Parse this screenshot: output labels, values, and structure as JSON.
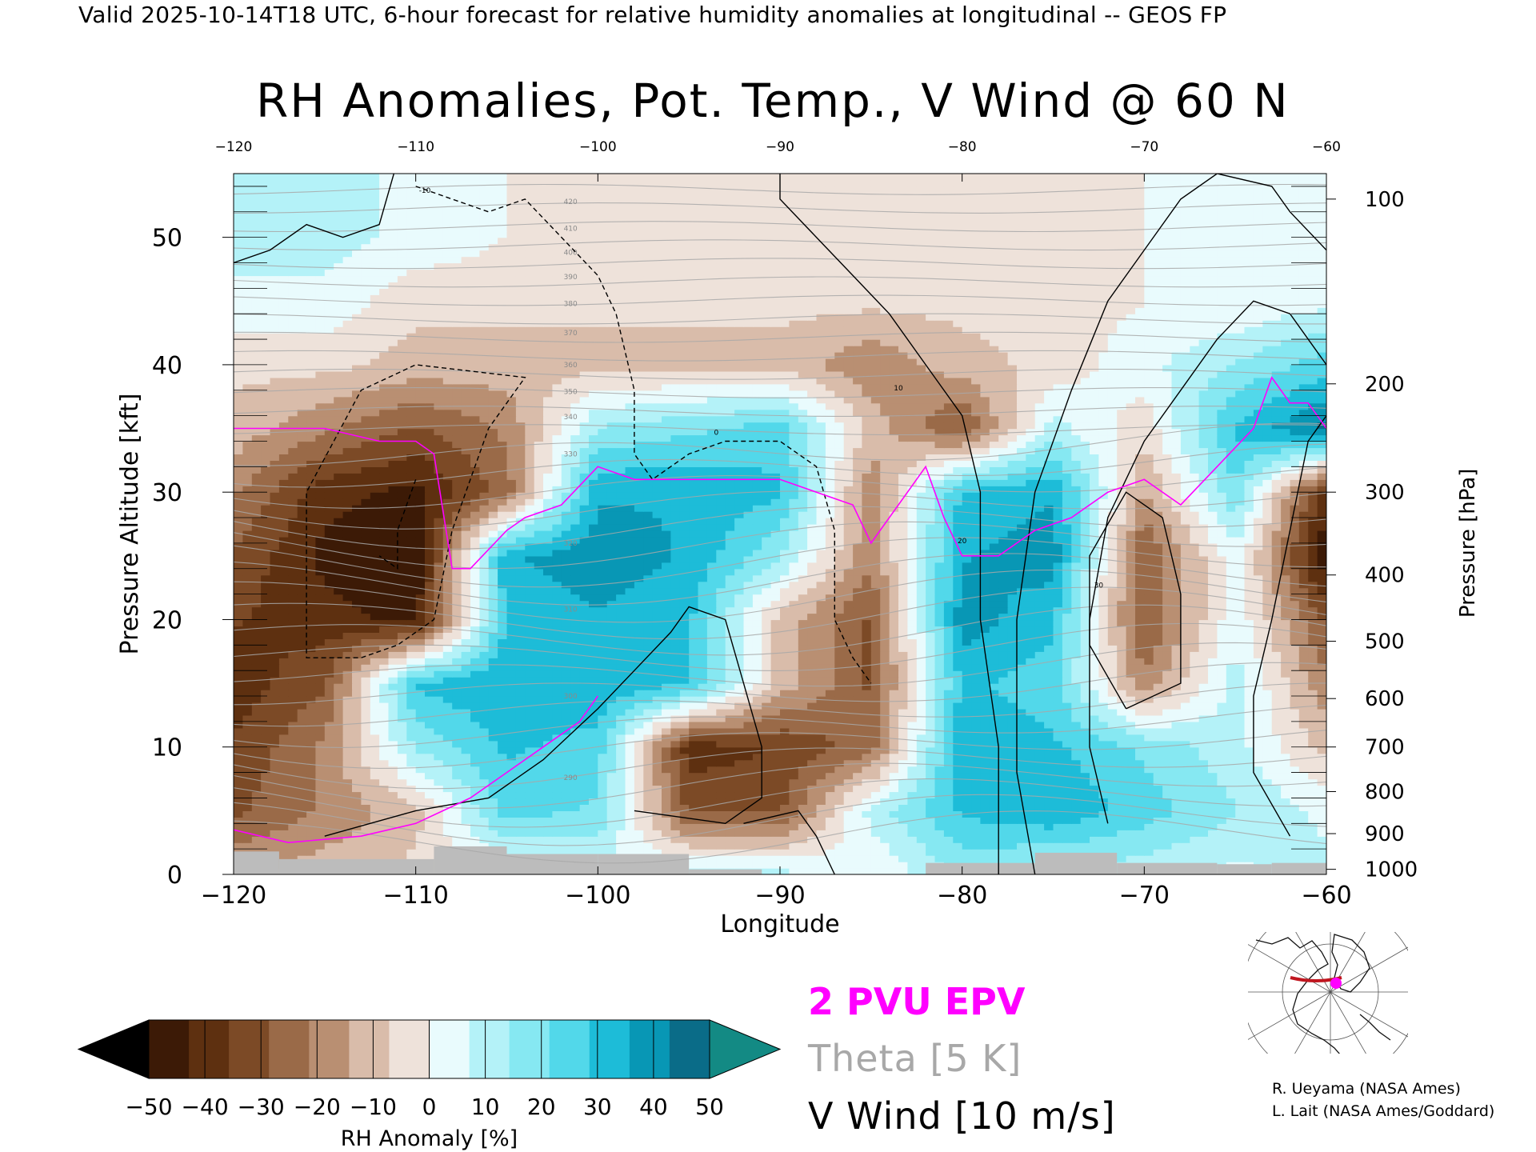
{
  "header": {
    "valid_line": "Valid 2025-10-14T18 UTC, 6-hour forecast for relative humidity anomalies at longitudinal -- GEOS FP",
    "title": "RH Anomalies, Pot. Temp., V Wind @ 60 N"
  },
  "chart_data": {
    "type": "heatmap",
    "title": "RH Anomalies, Pot. Temp., V Wind @ 60 N",
    "xlabel": "Longitude",
    "ylabel_left": "Pressure Altitude [kft]",
    "ylabel_right": "Pressure [hPa]",
    "xlim": [
      -120,
      -60
    ],
    "ylim_kft": [
      0,
      55
    ],
    "x_ticks": [
      "−120",
      "−110",
      "−100",
      "−90",
      "−80",
      "−70",
      "−60"
    ],
    "x_ticks_top": [
      "−120",
      "−110",
      "−100",
      "−90",
      "−80",
      "−70",
      "−60"
    ],
    "y_ticks_left": [
      "0",
      "10",
      "20",
      "30",
      "40",
      "50"
    ],
    "y_ticks_right": [
      "100",
      "200",
      "300",
      "400",
      "500",
      "600",
      "700",
      "800",
      "900",
      "1000"
    ],
    "y_ticks_right_kft": [
      53.0,
      38.5,
      30.0,
      23.5,
      18.3,
      13.8,
      10.0,
      6.5,
      3.2,
      0.4
    ],
    "theta_labels": [
      "290",
      "300",
      "310",
      "320",
      "330",
      "340",
      "350",
      "360",
      "370",
      "380",
      "390",
      "400",
      "410",
      "420"
    ],
    "theta_label_kft": [
      7.6,
      14.0,
      20.8,
      26.0,
      33.0,
      35.9,
      37.9,
      40.0,
      42.5,
      44.8,
      46.9,
      48.8,
      50.7,
      52.8
    ],
    "colorbar": {
      "label": "RH Anomaly [%]",
      "ticks": [
        "−50",
        "−40",
        "−30",
        "−20",
        "−10",
        "0",
        "10",
        "20",
        "30",
        "40",
        "50"
      ],
      "colors": [
        "#000000",
        "#3c1a06",
        "#5e3010",
        "#7c4a26",
        "#9a6a48",
        "#b98f72",
        "#d9bcaa",
        "#eee2da",
        "#e9fbfd",
        "#b4f2f8",
        "#86e8f2",
        "#52d8ea",
        "#1dbcd8",
        "#0897b5",
        "#0a6c88",
        "#138a84"
      ]
    },
    "rh_anomaly_field": {
      "lon": [
        -120,
        -115,
        -110,
        -105,
        -100,
        -95,
        -90,
        -85,
        -80,
        -75,
        -70,
        -65,
        -60
      ],
      "kft": [
        0,
        5,
        10,
        15,
        20,
        25,
        30,
        35,
        40,
        45,
        50,
        55
      ],
      "values": [
        [
          -15,
          -10,
          -5,
          0,
          5,
          10,
          10,
          0,
          15,
          10,
          10,
          5,
          10
        ],
        [
          -30,
          -20,
          -10,
          25,
          20,
          -30,
          -30,
          10,
          30,
          35,
          25,
          15,
          5
        ],
        [
          -35,
          -20,
          15,
          30,
          25,
          -40,
          -35,
          -25,
          35,
          30,
          20,
          10,
          -10
        ],
        [
          -40,
          -30,
          30,
          35,
          35,
          30,
          -10,
          -30,
          30,
          25,
          -20,
          10,
          -20
        ],
        [
          -35,
          -40,
          -45,
          30,
          35,
          30,
          -10,
          -30,
          40,
          30,
          -30,
          5,
          -30
        ],
        [
          -30,
          -45,
          -50,
          35,
          40,
          35,
          15,
          -20,
          35,
          40,
          -30,
          5,
          -50
        ],
        [
          -20,
          -40,
          -45,
          -25,
          35,
          35,
          30,
          -20,
          30,
          35,
          -15,
          20,
          -40
        ],
        [
          -10,
          -20,
          -30,
          -20,
          15,
          20,
          25,
          -10,
          -30,
          10,
          -5,
          30,
          45
        ],
        [
          -5,
          -5,
          -10,
          -10,
          -10,
          -10,
          -10,
          -20,
          -10,
          -5,
          5,
          15,
          25
        ],
        [
          5,
          5,
          -5,
          -5,
          -5,
          -5,
          -5,
          -5,
          -5,
          -5,
          0,
          0,
          5
        ],
        [
          10,
          10,
          5,
          0,
          -2,
          -2,
          -2,
          -2,
          -2,
          -2,
          0,
          0,
          0
        ],
        [
          10,
          10,
          5,
          0,
          -2,
          -2,
          -2,
          -2,
          -2,
          -2,
          0,
          0,
          0
        ]
      ]
    },
    "epv_2pvu_line": {
      "lon": [
        -120,
        -118,
        -115,
        -112,
        -110,
        -109,
        -108,
        -107,
        -105,
        -104,
        -102,
        -100,
        -98,
        -95,
        -92,
        -90,
        -88,
        -86,
        -85,
        -83,
        -82,
        -81,
        -80,
        -78,
        -76,
        -74,
        -72,
        -70,
        -68,
        -66,
        -64,
        -63,
        -62,
        -61,
        -60
      ],
      "kft": [
        35,
        35,
        35,
        34,
        34,
        33,
        24,
        24,
        27,
        28,
        29,
        32,
        31,
        31,
        31,
        31,
        30,
        29,
        26,
        30,
        32,
        28,
        25,
        25,
        27,
        28,
        30,
        31,
        29,
        32,
        35,
        39,
        37,
        37,
        35
      ]
    },
    "series": [
      {
        "name": "V Wind [10 m/s]",
        "contour_labels": [
          "-10",
          "0",
          "10",
          "20",
          "30"
        ]
      }
    ],
    "legend": {
      "epv": "2 PVU EPV",
      "theta": "Theta [5 K]",
      "vwind": "V Wind [10 m/s]",
      "colors": {
        "epv": "#ff00ff",
        "theta": "#a8a8a8",
        "vwind": "#000000"
      }
    },
    "inset_map": {
      "region": "North America polar stereographic",
      "line_color": "#c0161f",
      "marker_color": "#ff00ff"
    }
  },
  "credits": {
    "line1": "R. Ueyama (NASA Ames)",
    "line2": "L. Lait (NASA Ames/Goddard)"
  }
}
